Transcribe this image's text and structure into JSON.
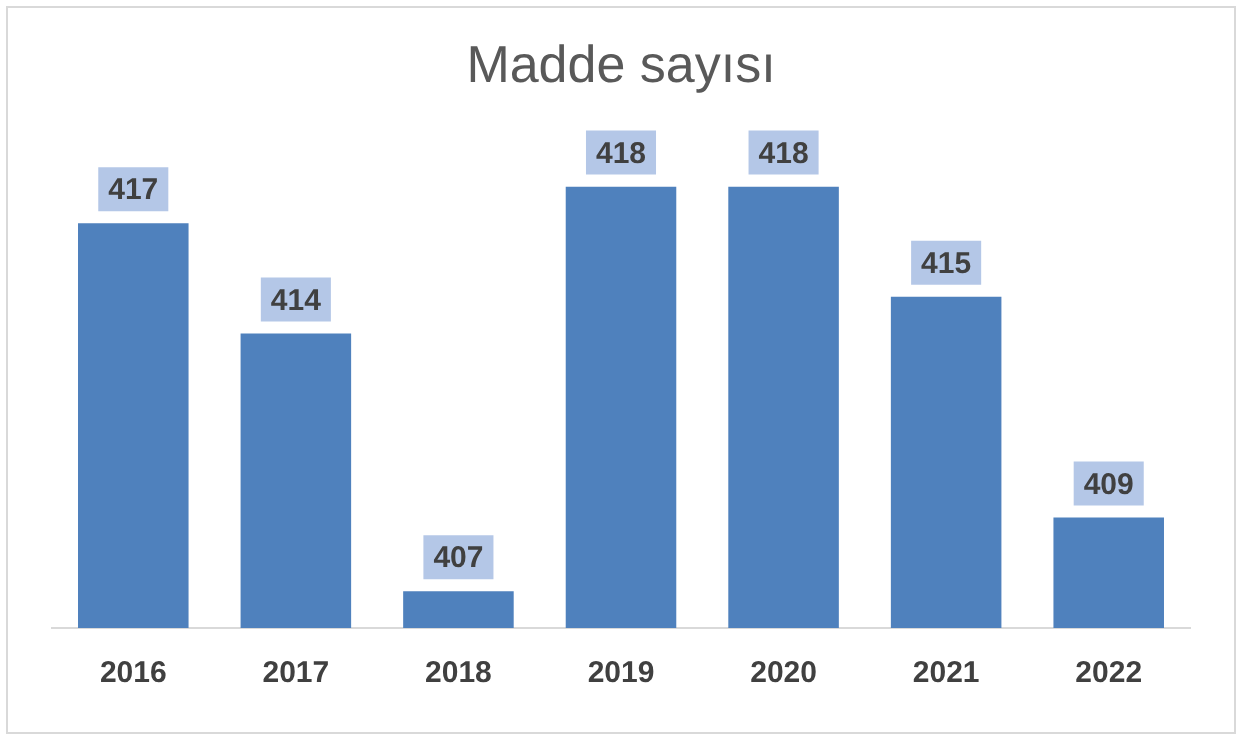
{
  "chart_data": {
    "type": "bar",
    "title": "Madde sayısı",
    "categories": [
      "2016",
      "2017",
      "2018",
      "2019",
      "2020",
      "2021",
      "2022"
    ],
    "values": [
      417,
      414,
      407,
      418,
      418,
      415,
      409
    ],
    "color": "#4f81bd",
    "tick_labels": "x",
    "data_labels": true,
    "grid": false,
    "legend": false
  }
}
